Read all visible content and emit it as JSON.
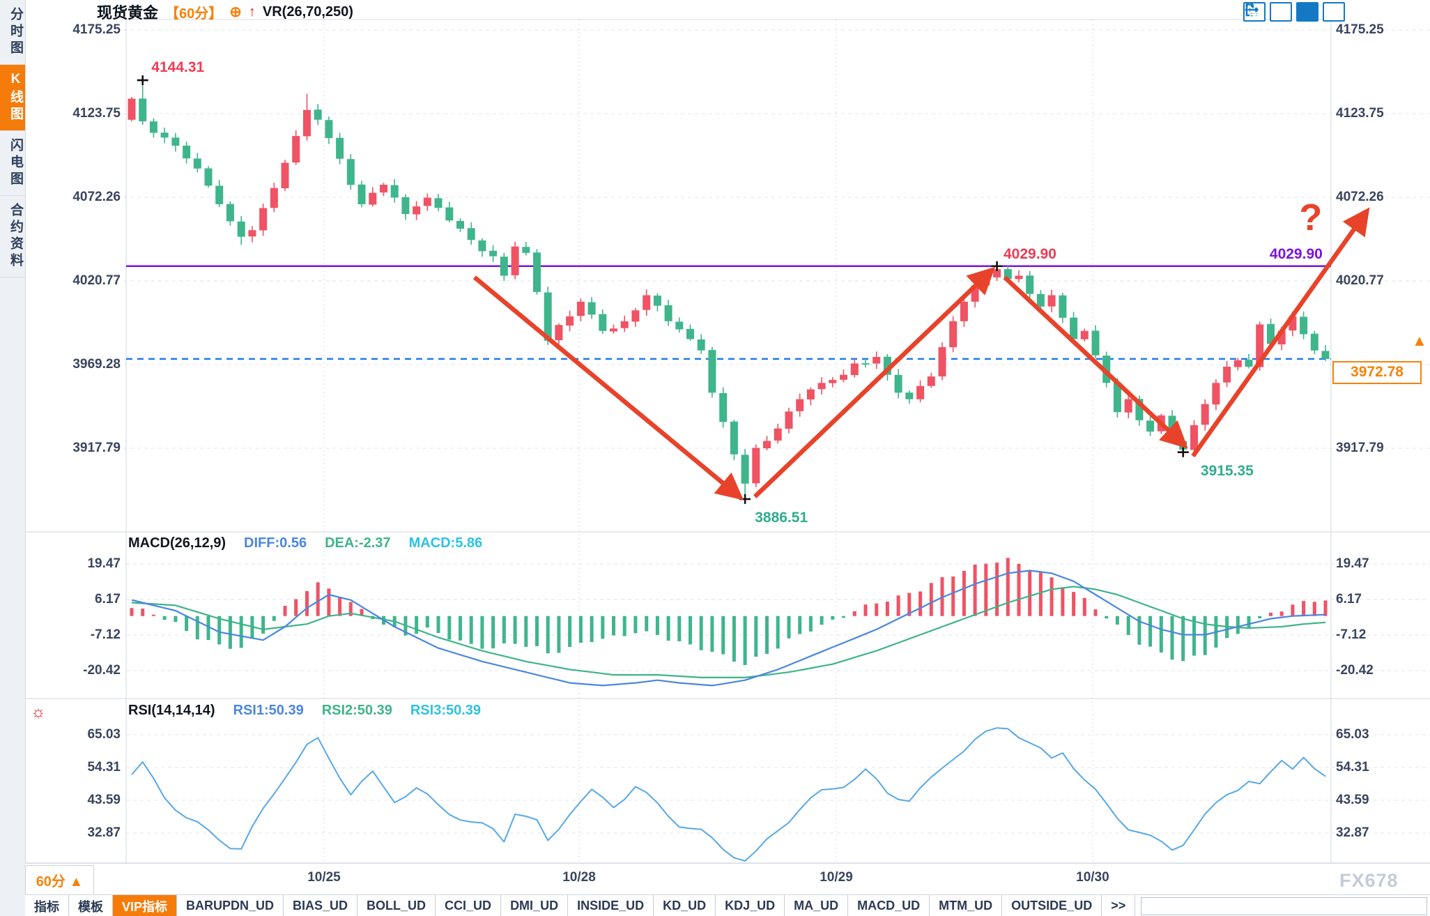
{
  "sidebar": {
    "items": [
      {
        "label": "分时图",
        "active": false
      },
      {
        "label": "K线图",
        "active": true
      },
      {
        "label": "闪电图",
        "active": false
      },
      {
        "label": "合约资料",
        "active": false
      }
    ]
  },
  "header": {
    "symbol": "现货黄金",
    "period": "【60分】",
    "overlay_icon": "circle-plus",
    "trend_icon": "red-up-arrow",
    "indicator": "VR(26,70,250)"
  },
  "toolbar": {
    "icons": [
      {
        "name": "pan-crosshair-icon",
        "active": false
      },
      {
        "name": "axis-scale-icon",
        "active": false
      },
      {
        "name": "axis-play-icon",
        "active": true
      },
      {
        "name": "exit-right-icon",
        "active": false
      }
    ]
  },
  "macd_row": {
    "name": "MACD(26,12,9)",
    "diff": "DIFF:0.56",
    "dea": "DEA:-2.37",
    "macd": "MACD:5.86"
  },
  "rsi_row": {
    "name": "RSI(14,14,14)",
    "rsi1": "RSI1:50.39",
    "rsi2": "RSI2:50.39",
    "rsi3": "RSI3:50.39"
  },
  "current_price": {
    "value": "3972.78",
    "marker": "▲"
  },
  "footer": {
    "period_label": "60分 ▲",
    "tabs": [
      {
        "label": "指标",
        "active": false
      },
      {
        "label": "模板",
        "active": false
      },
      {
        "label": "VIP指标",
        "active": true
      },
      {
        "label": "BARUPDN_UD",
        "active": false
      },
      {
        "label": "BIAS_UD",
        "active": false
      },
      {
        "label": "BOLL_UD",
        "active": false
      },
      {
        "label": "CCI_UD",
        "active": false
      },
      {
        "label": "DMI_UD",
        "active": false
      },
      {
        "label": "INSIDE_UD",
        "active": false
      },
      {
        "label": "KD_UD",
        "active": false
      },
      {
        "label": "KDJ_UD",
        "active": false
      },
      {
        "label": "MA_UD",
        "active": false
      },
      {
        "label": "MACD_UD",
        "active": false
      },
      {
        "label": "MTM_UD",
        "active": false
      },
      {
        "label": "OUTSIDE_UD",
        "active": false
      },
      {
        "label": ">>",
        "active": false
      }
    ]
  },
  "watermark": "FX678",
  "colors": {
    "up": "#ef5364",
    "down": "#3fb58c",
    "diff_line": "#4a86e0",
    "dea_line": "#3eb488",
    "macd_text": "#2cc3e4",
    "rsi_line": "#57a8e8",
    "accent_orange": "#f5820b",
    "purple_line": "#7c12e0",
    "blue_dashed": "#1e7ce8",
    "arrow_red": "#e8432a",
    "label_red": "#ee3b55",
    "label_green": "#2fae8d",
    "axis_text": "#39455e"
  },
  "chart_data": {
    "type": "candlestick",
    "title": "现货黄金 【60分】 VR(26,70,250)",
    "panels": [
      "price",
      "MACD",
      "RSI"
    ],
    "price_axis": {
      "ticks": [
        4175.25,
        4123.75,
        4072.26,
        4020.77,
        3969.28,
        3917.79
      ],
      "min": 3880,
      "max": 4180
    },
    "macd_axis": {
      "ticks": [
        19.47,
        6.17,
        -7.12,
        -20.42
      ]
    },
    "rsi_axis": {
      "ticks": [
        65.03,
        54.31,
        43.59,
        32.87
      ]
    },
    "x_dates": [
      {
        "label": "10/25",
        "i": 17.56
      },
      {
        "label": "10/28",
        "i": 40.85
      },
      {
        "label": "10/29",
        "i": 64.33
      },
      {
        "label": "10/30",
        "i": 87.74
      }
    ],
    "candle_count": 110,
    "open_first": 4120,
    "close_anchors": [
      [
        0,
        4133
      ],
      [
        1,
        4119
      ],
      [
        2,
        4112
      ],
      [
        4,
        4104
      ],
      [
        6,
        4090
      ],
      [
        8,
        4068
      ],
      [
        10,
        4048
      ],
      [
        11,
        4052
      ],
      [
        13,
        4078
      ],
      [
        15,
        4110
      ],
      [
        16,
        4126
      ],
      [
        17,
        4120
      ],
      [
        19,
        4096
      ],
      [
        21,
        4068
      ],
      [
        22,
        4075
      ],
      [
        23,
        4080
      ],
      [
        25,
        4062
      ],
      [
        27,
        4072
      ],
      [
        29,
        4058
      ],
      [
        31,
        4046
      ],
      [
        33,
        4036
      ],
      [
        34,
        4024
      ],
      [
        35,
        4042
      ],
      [
        36,
        4038
      ],
      [
        37,
        4014
      ],
      [
        38,
        3984
      ],
      [
        40,
        3999
      ],
      [
        41,
        4008
      ],
      [
        43,
        3990
      ],
      [
        45,
        3996
      ],
      [
        47,
        4012
      ],
      [
        49,
        3996
      ],
      [
        51,
        3985
      ],
      [
        52,
        3978
      ],
      [
        53,
        3952
      ],
      [
        54,
        3934
      ],
      [
        55,
        3914
      ],
      [
        56,
        3896
      ],
      [
        57,
        3918
      ],
      [
        59,
        3930
      ],
      [
        61,
        3948
      ],
      [
        63,
        3958
      ],
      [
        65,
        3963
      ],
      [
        66,
        3970
      ],
      [
        68,
        3974
      ],
      [
        70,
        3952
      ],
      [
        71,
        3948
      ],
      [
        73,
        3962
      ],
      [
        74,
        3980
      ],
      [
        75,
        3996
      ],
      [
        76,
        4008
      ],
      [
        77,
        4018
      ],
      [
        79,
        4028
      ],
      [
        80,
        4022
      ],
      [
        81,
        4024
      ],
      [
        83,
        4005
      ],
      [
        84,
        4012
      ],
      [
        86,
        3985
      ],
      [
        87,
        3990
      ],
      [
        88,
        3975
      ],
      [
        89,
        3958
      ],
      [
        90,
        3940
      ],
      [
        91,
        3948
      ],
      [
        92,
        3935
      ],
      [
        93,
        3928
      ],
      [
        94,
        3938
      ],
      [
        95,
        3922
      ],
      [
        96,
        3917
      ],
      [
        97,
        3932
      ],
      [
        98,
        3945
      ],
      [
        99,
        3958
      ],
      [
        100,
        3968
      ],
      [
        101,
        3972
      ],
      [
        102,
        3968
      ],
      [
        103,
        3994
      ],
      [
        104,
        3982
      ],
      [
        105,
        3990
      ],
      [
        106,
        3999
      ],
      [
        107,
        3988
      ],
      [
        108,
        3978
      ],
      [
        109,
        3972.78
      ]
    ],
    "high_overrides": {
      "1": 4144.31,
      "16": 4136,
      "79": 4029.9,
      "106": 4002
    },
    "low_overrides": {
      "10": 4043,
      "56": 3886.51,
      "96": 3915.35
    },
    "key_markers": [
      {
        "i": 1,
        "price": 4144.31
      },
      {
        "i": 56,
        "price": 3886.51
      },
      {
        "i": 79,
        "price": 4029.9
      },
      {
        "i": 96,
        "price": 3915.35
      }
    ],
    "hlines": [
      {
        "price": 4029.9,
        "style": "solid",
        "color": "#7c12e0",
        "label": "4029.90"
      },
      {
        "price": 3972.78,
        "style": "dashed",
        "color": "#1e7ce8",
        "label": "3972.78"
      }
    ],
    "annotations": [
      {
        "name": "label-high-4144",
        "text": "4144.31",
        "i": 1.8,
        "price": 4152,
        "color": "#ee3b55",
        "size": 21
      },
      {
        "name": "label-peak-4029-red",
        "text": "4029.90",
        "i": 79.6,
        "price": 4037,
        "color": "#ee3b55",
        "size": 21
      },
      {
        "name": "label-4029-purple",
        "text": "4029.90",
        "i": 103.9,
        "price": 4037,
        "color": "#7c12e0",
        "size": 21
      },
      {
        "name": "label-low-3886",
        "text": "3886.51",
        "i": 56.9,
        "price": 3875,
        "color": "#2fae8d",
        "size": 21
      },
      {
        "name": "label-low-3915",
        "text": "3915.35",
        "i": 97.6,
        "price": 3903.5,
        "color": "#2fae8d",
        "size": 21
      },
      {
        "name": "question-mark",
        "text": "?",
        "i": 106.6,
        "price": 4060,
        "color": "#e8432a",
        "size": 54
      }
    ],
    "trend_arrows": [
      [
        31.3,
        4023,
        55.3,
        3889
      ],
      [
        56.9,
        3888,
        78.3,
        4026
      ],
      [
        79.7,
        4023,
        95.9,
        3921
      ],
      [
        96.9,
        3913,
        112.6,
        4062
      ]
    ],
    "macd": {
      "diff": 0.56,
      "dea": -2.37,
      "macd": 5.86,
      "hist_anchors": [
        [
          0,
          3
        ],
        [
          2,
          1
        ],
        [
          4,
          -3
        ],
        [
          6,
          -8
        ],
        [
          8,
          -11
        ],
        [
          10,
          -12
        ],
        [
          12,
          -6
        ],
        [
          14,
          3
        ],
        [
          16,
          10
        ],
        [
          17,
          12
        ],
        [
          19,
          8
        ],
        [
          21,
          2
        ],
        [
          23,
          -3
        ],
        [
          25,
          -7
        ],
        [
          27,
          -5
        ],
        [
          29,
          -8
        ],
        [
          31,
          -11
        ],
        [
          33,
          -12
        ],
        [
          35,
          -10
        ],
        [
          37,
          -12
        ],
        [
          38,
          -14
        ],
        [
          40,
          -12
        ],
        [
          42,
          -9
        ],
        [
          44,
          -8
        ],
        [
          46,
          -6
        ],
        [
          48,
          -7
        ],
        [
          50,
          -10
        ],
        [
          52,
          -12
        ],
        [
          54,
          -15
        ],
        [
          56,
          -18
        ],
        [
          58,
          -14
        ],
        [
          60,
          -9
        ],
        [
          62,
          -5
        ],
        [
          64,
          -2
        ],
        [
          66,
          2
        ],
        [
          68,
          5
        ],
        [
          70,
          7
        ],
        [
          72,
          10
        ],
        [
          74,
          14
        ],
        [
          76,
          17
        ],
        [
          78,
          20
        ],
        [
          80,
          21
        ],
        [
          82,
          18
        ],
        [
          84,
          14
        ],
        [
          86,
          9
        ],
        [
          88,
          3
        ],
        [
          90,
          -4
        ],
        [
          92,
          -10
        ],
        [
          94,
          -14
        ],
        [
          96,
          -17
        ],
        [
          98,
          -14
        ],
        [
          100,
          -9
        ],
        [
          102,
          -4
        ],
        [
          104,
          1
        ],
        [
          106,
          4
        ],
        [
          108,
          6
        ],
        [
          109,
          6
        ]
      ],
      "diff_anchors": [
        [
          0,
          6
        ],
        [
          4,
          2
        ],
        [
          8,
          -6
        ],
        [
          12,
          -9
        ],
        [
          14,
          -4
        ],
        [
          16,
          3
        ],
        [
          18,
          8
        ],
        [
          20,
          6
        ],
        [
          24,
          -4
        ],
        [
          28,
          -12
        ],
        [
          32,
          -17
        ],
        [
          34,
          -19
        ],
        [
          36,
          -21
        ],
        [
          38,
          -23
        ],
        [
          40,
          -25
        ],
        [
          43,
          -26
        ],
        [
          46,
          -25
        ],
        [
          48,
          -24
        ],
        [
          50,
          -25
        ],
        [
          53,
          -26
        ],
        [
          56,
          -24
        ],
        [
          59,
          -20
        ],
        [
          62,
          -15
        ],
        [
          65,
          -10
        ],
        [
          68,
          -5
        ],
        [
          71,
          1
        ],
        [
          74,
          7
        ],
        [
          77,
          12
        ],
        [
          80,
          16
        ],
        [
          82,
          17
        ],
        [
          84,
          16
        ],
        [
          86,
          13
        ],
        [
          88,
          8
        ],
        [
          90,
          3
        ],
        [
          92,
          -2
        ],
        [
          94,
          -5
        ],
        [
          96,
          -7
        ],
        [
          98,
          -7
        ],
        [
          100,
          -5
        ],
        [
          102,
          -3
        ],
        [
          104,
          -1
        ],
        [
          106,
          0
        ],
        [
          109,
          0.56
        ]
      ],
      "dea_anchors": [
        [
          0,
          5
        ],
        [
          4,
          4
        ],
        [
          8,
          -1
        ],
        [
          12,
          -5
        ],
        [
          16,
          -3
        ],
        [
          18,
          0
        ],
        [
          20,
          1
        ],
        [
          24,
          -2
        ],
        [
          28,
          -8
        ],
        [
          32,
          -13
        ],
        [
          36,
          -17
        ],
        [
          40,
          -20
        ],
        [
          44,
          -22
        ],
        [
          48,
          -22
        ],
        [
          52,
          -23
        ],
        [
          56,
          -23
        ],
        [
          60,
          -21
        ],
        [
          64,
          -18
        ],
        [
          68,
          -13
        ],
        [
          72,
          -7
        ],
        [
          76,
          -1
        ],
        [
          80,
          5
        ],
        [
          84,
          10
        ],
        [
          86,
          11
        ],
        [
          88,
          10
        ],
        [
          90,
          8
        ],
        [
          92,
          5
        ],
        [
          94,
          2
        ],
        [
          96,
          -1
        ],
        [
          98,
          -3
        ],
        [
          100,
          -4
        ],
        [
          102,
          -4.5
        ],
        [
          105,
          -4
        ],
        [
          107,
          -3
        ],
        [
          109,
          -2.37
        ]
      ]
    },
    "rsi": {
      "rsi1": 50.39,
      "rsi2": 50.39,
      "rsi3": 50.39,
      "anchors": [
        [
          0,
          52
        ],
        [
          1,
          55
        ],
        [
          3,
          45
        ],
        [
          5,
          38
        ],
        [
          7,
          33
        ],
        [
          9,
          29
        ],
        [
          10,
          28
        ],
        [
          12,
          40
        ],
        [
          14,
          52
        ],
        [
          16,
          61
        ],
        [
          17,
          63
        ],
        [
          19,
          52
        ],
        [
          20,
          46
        ],
        [
          22,
          52
        ],
        [
          24,
          44
        ],
        [
          26,
          47
        ],
        [
          28,
          42
        ],
        [
          30,
          38
        ],
        [
          31,
          36
        ],
        [
          33,
          34
        ],
        [
          34,
          31
        ],
        [
          35,
          40
        ],
        [
          37,
          36
        ],
        [
          38,
          30
        ],
        [
          40,
          40
        ],
        [
          42,
          46
        ],
        [
          44,
          42
        ],
        [
          46,
          48
        ],
        [
          48,
          42
        ],
        [
          50,
          36
        ],
        [
          52,
          33
        ],
        [
          54,
          28
        ],
        [
          56,
          24
        ],
        [
          57,
          26
        ],
        [
          59,
          34
        ],
        [
          61,
          41
        ],
        [
          63,
          46
        ],
        [
          65,
          49
        ],
        [
          67,
          53
        ],
        [
          69,
          46
        ],
        [
          71,
          44
        ],
        [
          73,
          50
        ],
        [
          75,
          58
        ],
        [
          77,
          63
        ],
        [
          79,
          67
        ],
        [
          80,
          68
        ],
        [
          82,
          62
        ],
        [
          84,
          57
        ],
        [
          85,
          60
        ],
        [
          87,
          50
        ],
        [
          89,
          42
        ],
        [
          91,
          35
        ],
        [
          93,
          31
        ],
        [
          95,
          28
        ],
        [
          96,
          30
        ],
        [
          98,
          38
        ],
        [
          100,
          46
        ],
        [
          102,
          50
        ],
        [
          103,
          48
        ],
        [
          104,
          52
        ],
        [
          105,
          57
        ],
        [
          106,
          55
        ],
        [
          107,
          58
        ],
        [
          108,
          53
        ],
        [
          109,
          50.4
        ]
      ]
    }
  }
}
